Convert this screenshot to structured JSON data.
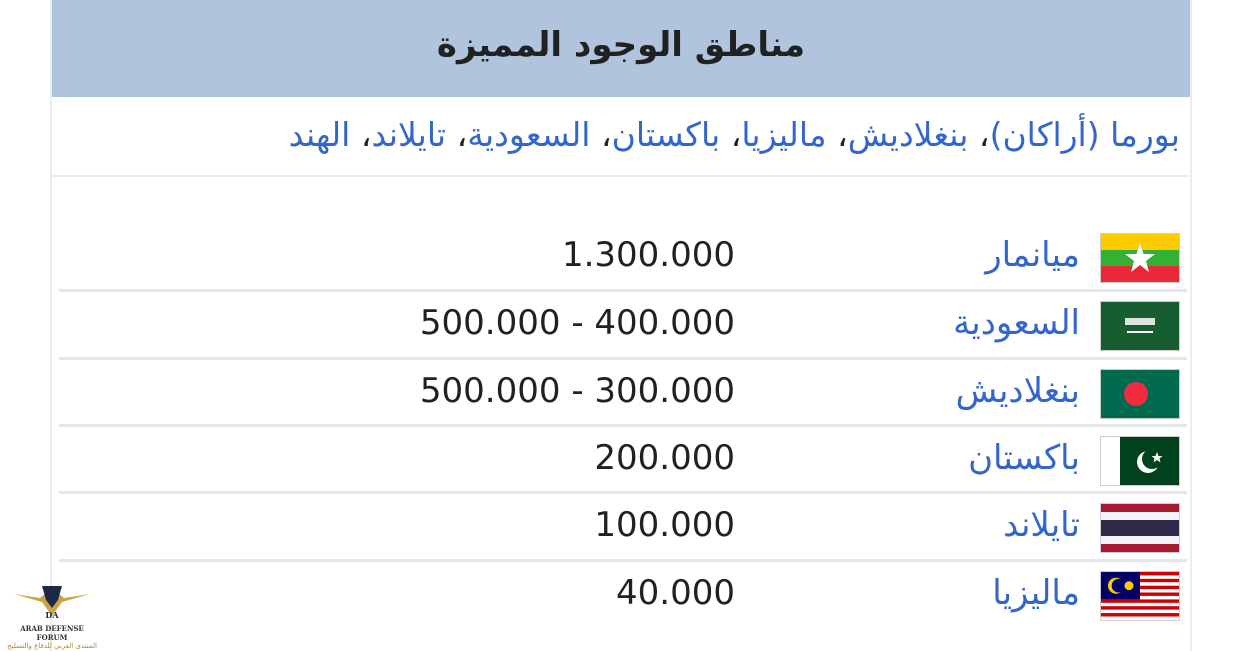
{
  "header": {
    "title": "مناطق الوجود المميزة"
  },
  "regions": {
    "items": [
      "بورما (أراكان)",
      "بنغلاديش",
      "ماليزيا",
      "باكستان",
      "السعودية",
      "تايلاند",
      "الهند"
    ],
    "separator": "، "
  },
  "table": {
    "rows": [
      [
        "ميانمار",
        "1.300.000"
      ],
      [
        "السعودية",
        "500.000 - 400.000"
      ],
      [
        "بنغلاديش",
        "500.000 - 300.000"
      ],
      [
        "باكستان",
        "200.000"
      ],
      [
        "تايلاند",
        "100.000"
      ],
      [
        "ماليزيا",
        "40.000"
      ]
    ]
  },
  "watermark": {
    "name": "ARAB DEFENSE FORUM",
    "subtitle": "المنتدى العربي للدفاع والتسليح",
    "mark": "DA"
  }
}
